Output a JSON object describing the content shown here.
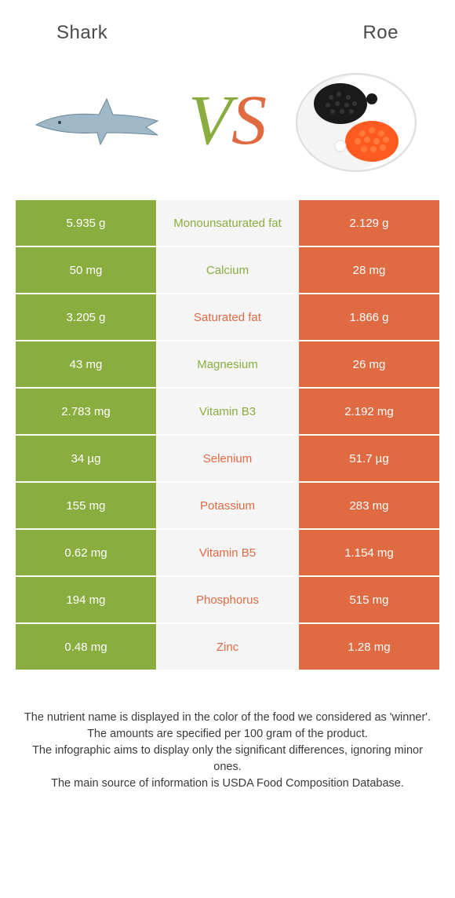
{
  "header": {
    "left_title": "Shark",
    "right_title": "Roe"
  },
  "colors": {
    "left": "#8aad3f",
    "right": "#e06a42",
    "mid_bg": "#f5f5f5",
    "page_bg": "#ffffff",
    "text": "#4a4a4a"
  },
  "typography": {
    "header_fontsize": 24,
    "vs_fontsize": 90,
    "cell_fontsize": 15,
    "footer_fontsize": 14.5
  },
  "vs": {
    "v": "V",
    "s": "S"
  },
  "rows": [
    {
      "left": "5.935 g",
      "label": "Monounsaturated fat",
      "right": "2.129 g",
      "winner": "left"
    },
    {
      "left": "50 mg",
      "label": "Calcium",
      "right": "28 mg",
      "winner": "left"
    },
    {
      "left": "3.205 g",
      "label": "Saturated fat",
      "right": "1.866 g",
      "winner": "right"
    },
    {
      "left": "43 mg",
      "label": "Magnesium",
      "right": "26 mg",
      "winner": "left"
    },
    {
      "left": "2.783 mg",
      "label": "Vitamin B3",
      "right": "2.192 mg",
      "winner": "left"
    },
    {
      "left": "34 µg",
      "label": "Selenium",
      "right": "51.7 µg",
      "winner": "right"
    },
    {
      "left": "155 mg",
      "label": "Potassium",
      "right": "283 mg",
      "winner": "right"
    },
    {
      "left": "0.62 mg",
      "label": "Vitamin B5",
      "right": "1.154 mg",
      "winner": "right"
    },
    {
      "left": "194 mg",
      "label": "Phosphorus",
      "right": "515 mg",
      "winner": "right"
    },
    {
      "left": "0.48 mg",
      "label": "Zinc",
      "right": "1.28 mg",
      "winner": "right"
    }
  ],
  "footer": {
    "line1": "The nutrient name is displayed in the color of the food we considered as 'winner'.",
    "line2": "The amounts are specified per 100 gram of the product.",
    "line3": "The infographic aims to display only the significant differences, ignoring minor ones.",
    "line4": "The main source of information is USDA Food Composition Database."
  }
}
